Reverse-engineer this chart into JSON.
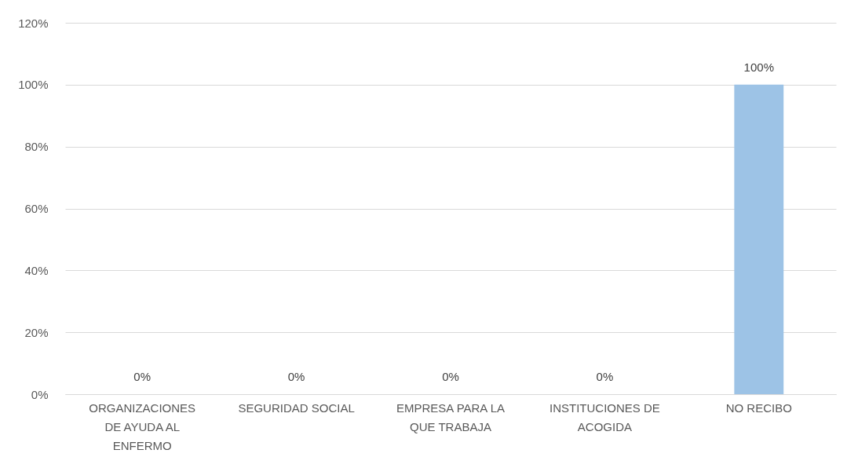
{
  "chart_data": {
    "type": "bar",
    "categories": [
      "ORGANIZACIONES DE AYUDA AL ENFERMO",
      "SEGURIDAD SOCIAL",
      "EMPRESA PARA LA QUE TRABAJA",
      "INSTITUCIONES DE ACOGIDA",
      "NO RECIBO"
    ],
    "values": [
      0,
      0,
      0,
      0,
      100
    ],
    "color": "#9dc3e6",
    "value_labels": [
      "0%",
      "0%",
      "0%",
      "0%",
      "100%"
    ],
    "ylim": [
      0,
      120
    ],
    "yticks": [
      {
        "value": 0,
        "label": "0%"
      },
      {
        "value": 20,
        "label": "20%"
      },
      {
        "value": 40,
        "label": "40%"
      },
      {
        "value": 60,
        "label": "60%"
      },
      {
        "value": 80,
        "label": "80%"
      },
      {
        "value": 100,
        "label": "100%"
      },
      {
        "value": 120,
        "label": "120%"
      }
    ],
    "grid": "y"
  }
}
